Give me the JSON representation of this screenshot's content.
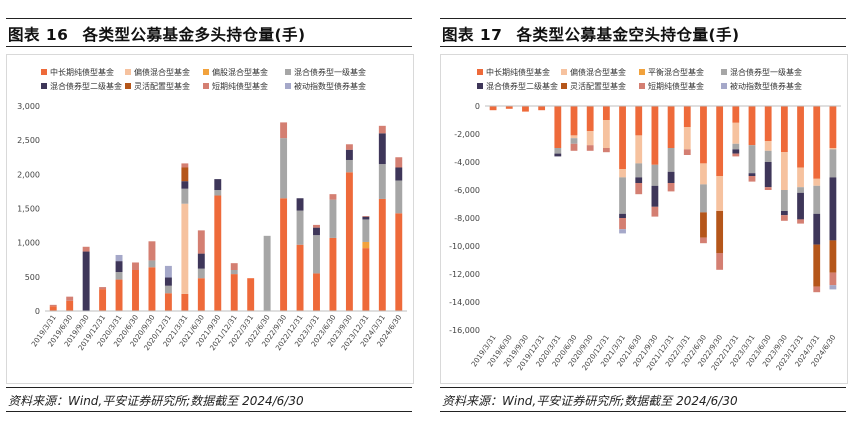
{
  "colors": {
    "中长期纯债型基金": "#ee6a3a",
    "偏债混合型基金": "#f6c29f",
    "偏股混合型基金": "#f2a23c",
    "平衡混合型基金": "#f2a23c",
    "混合债券型一级基金": "#a6a6a6",
    "混合债券型二级基金": "#3e3659",
    "灵活配置型基金": "#b5561a",
    "短期纯债型基金": "#d47f72",
    "被动指数型债券基金": "#a5a8c9"
  },
  "left": {
    "fig": "图表 16",
    "title": "各类型公募基金多头持仓量(手)",
    "source": "资料来源：Wind,平安证券研究所;数据截至 2024/6/30"
  },
  "right": {
    "fig": "图表 17",
    "title": "各类型公募基金空头持仓量(手)",
    "source": "资料来源：Wind,平安证券研究所;数据截至 2024/6/30"
  },
  "chart_data": [
    {
      "type": "bar",
      "stacked": true,
      "legend": "top",
      "grid": false,
      "ylim": [
        0,
        3000
      ],
      "yticks": [
        "0",
        "500",
        "1,000",
        "1,500",
        "2,000",
        "2,500",
        "3,000"
      ],
      "categories": [
        "2019/3/31",
        "2019/6/30",
        "2019/9/30",
        "2019/12/31",
        "2020/3/31",
        "2020/6/30",
        "2020/9/30",
        "2020/12/31",
        "2021/3/31",
        "2021/6/30",
        "2021/9/30",
        "2021/12/31",
        "2022/3/31",
        "2022/6/30",
        "2022/9/30",
        "2022/12/31",
        "2023/3/31",
        "2023/6/30",
        "2023/9/30",
        "2023/12/31",
        "2024/3/31",
        "2024/6/30"
      ],
      "series": [
        {
          "name": "中长期纯债型基金",
          "values": [
            70,
            150,
            0,
            320,
            460,
            600,
            640,
            260,
            250,
            480,
            1690,
            540,
            480,
            0,
            1650,
            970,
            550,
            1070,
            2030,
            920,
            1640,
            1430
          ]
        },
        {
          "name": "偏债混合型基金",
          "values": [
            0,
            0,
            0,
            0,
            0,
            0,
            0,
            0,
            1320,
            0,
            0,
            0,
            0,
            0,
            0,
            0,
            0,
            0,
            0,
            0,
            0,
            0
          ]
        },
        {
          "name": "偏股混合型基金",
          "values": [
            0,
            0,
            0,
            0,
            0,
            0,
            0,
            0,
            0,
            0,
            0,
            0,
            0,
            0,
            0,
            0,
            0,
            0,
            0,
            90,
            0,
            0
          ]
        },
        {
          "name": "混合债券型一级基金",
          "values": [
            0,
            0,
            0,
            0,
            110,
            0,
            100,
            110,
            220,
            140,
            80,
            60,
            0,
            1100,
            880,
            500,
            560,
            560,
            180,
            330,
            510,
            480
          ]
        },
        {
          "name": "混合债券型二级基金",
          "values": [
            0,
            0,
            870,
            0,
            160,
            0,
            0,
            120,
            110,
            220,
            160,
            0,
            0,
            0,
            0,
            180,
            110,
            0,
            150,
            40,
            450,
            190
          ]
        },
        {
          "name": "灵活配置型基金",
          "values": [
            0,
            0,
            0,
            0,
            0,
            0,
            0,
            0,
            200,
            0,
            0,
            0,
            0,
            0,
            0,
            0,
            0,
            0,
            0,
            0,
            0,
            0
          ]
        },
        {
          "name": "短期纯债型基金",
          "values": [
            20,
            60,
            70,
            30,
            0,
            110,
            280,
            0,
            60,
            340,
            0,
            100,
            0,
            0,
            230,
            0,
            40,
            80,
            80,
            10,
            110,
            150
          ]
        },
        {
          "name": "被动指数型债券基金",
          "values": [
            0,
            0,
            0,
            0,
            90,
            0,
            0,
            170,
            0,
            0,
            0,
            0,
            0,
            0,
            0,
            0,
            0,
            0,
            0,
            0,
            0,
            0
          ]
        }
      ]
    },
    {
      "type": "bar",
      "stacked": true,
      "legend": "top",
      "grid": false,
      "ylim": [
        -16000,
        0
      ],
      "yticks": [
        "0",
        "-2,000",
        "-4,000",
        "-6,000",
        "-8,000",
        "-10,000",
        "-12,000",
        "-14,000",
        "-16,000"
      ],
      "categories": [
        "2019/3/31",
        "2019/6/30",
        "2019/9/30",
        "2019/12/31",
        "2020/3/31",
        "2020/6/30",
        "2020/9/30",
        "2020/12/31",
        "2021/3/31",
        "2021/6/30",
        "2021/9/30",
        "2021/12/31",
        "2022/3/31",
        "2022/6/30",
        "2022/9/30",
        "2022/12/31",
        "2023/3/31",
        "2023/6/30",
        "2023/9/30",
        "2023/12/31",
        "2024/3/31",
        "2024/6/30"
      ],
      "series": [
        {
          "name": "中长期纯债型基金",
          "values": [
            -300,
            -200,
            -400,
            -300,
            -3000,
            -2100,
            -1800,
            -1000,
            -4500,
            -2100,
            -4200,
            -3000,
            -1500,
            -4100,
            -5000,
            -1200,
            -2800,
            -2500,
            -3300,
            -4400,
            -5200,
            -3000
          ]
        },
        {
          "name": "偏债混合型基金",
          "values": [
            0,
            0,
            0,
            0,
            0,
            -200,
            -1000,
            -2000,
            -600,
            -2000,
            0,
            0,
            -1600,
            -1500,
            -2500,
            -1500,
            0,
            -700,
            -2700,
            -1400,
            -500,
            -100
          ]
        },
        {
          "name": "平衡混合型基金",
          "values": [
            0,
            0,
            0,
            0,
            0,
            0,
            0,
            0,
            0,
            0,
            0,
            0,
            0,
            0,
            0,
            0,
            0,
            0,
            0,
            0,
            0,
            0
          ]
        },
        {
          "name": "混合债券型一级基金",
          "values": [
            0,
            0,
            0,
            0,
            -400,
            -400,
            0,
            0,
            -2600,
            -1000,
            -1500,
            -1700,
            0,
            -2000,
            0,
            -400,
            -2000,
            -800,
            -1500,
            -400,
            -2000,
            -2000
          ]
        },
        {
          "name": "混合债券型二级基金",
          "values": [
            0,
            0,
            0,
            0,
            -200,
            0,
            0,
            0,
            -300,
            -400,
            -1500,
            -800,
            0,
            0,
            0,
            -300,
            -200,
            -1800,
            -300,
            -1900,
            -2200,
            -4500
          ]
        },
        {
          "name": "灵活配置型基金",
          "values": [
            0,
            0,
            0,
            0,
            0,
            0,
            0,
            0,
            0,
            0,
            0,
            0,
            0,
            -1800,
            -3000,
            0,
            0,
            0,
            0,
            0,
            -3000,
            -2300
          ]
        },
        {
          "name": "短期纯债型基金",
          "values": [
            0,
            0,
            0,
            0,
            0,
            -500,
            -400,
            -300,
            -800,
            -800,
            -700,
            -600,
            -400,
            -400,
            -1200,
            -200,
            -400,
            -200,
            -400,
            -300,
            -400,
            -900
          ]
        },
        {
          "name": "被动指数型债券基金",
          "values": [
            0,
            0,
            0,
            0,
            0,
            0,
            0,
            0,
            -300,
            0,
            0,
            0,
            0,
            0,
            0,
            0,
            0,
            0,
            0,
            0,
            0,
            -300
          ]
        }
      ]
    }
  ]
}
